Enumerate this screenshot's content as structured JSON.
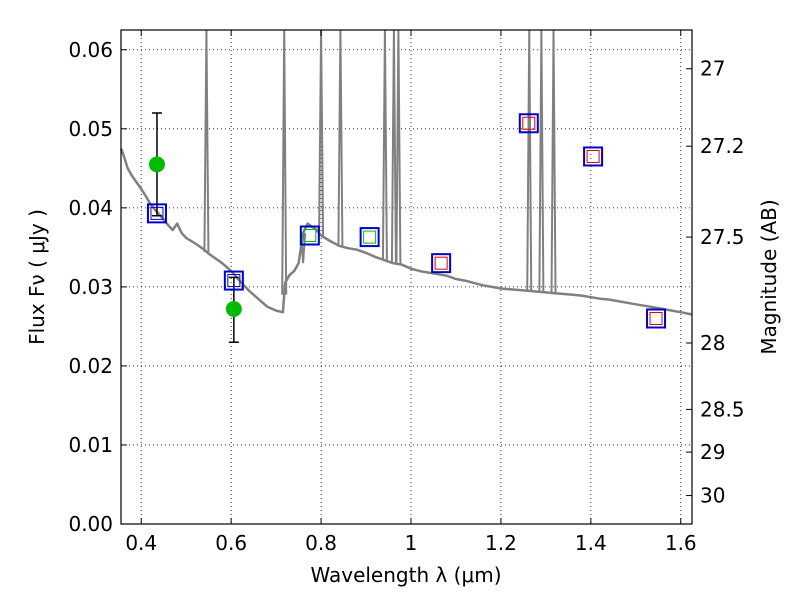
{
  "chart_data": {
    "type": "line",
    "xlabel": "Wavelength  λ (μm)",
    "ylabel_left": "Flux  Fν  ( μJy )",
    "ylabel_right": "Magnitude (AB)",
    "xlim": [
      0.355,
      1.625
    ],
    "ylim": [
      0.0,
      0.0625
    ],
    "grid": true,
    "x_ticks": [
      0.4,
      0.6,
      0.8,
      1.0,
      1.2,
      1.4,
      1.6
    ],
    "x_tick_labels": [
      "0.4",
      "0.6",
      "0.8",
      "1",
      "1.2",
      "1.4",
      "1.6"
    ],
    "y_ticks": [
      0.0,
      0.01,
      0.02,
      0.03,
      0.04,
      0.05,
      0.06
    ],
    "y_tick_labels": [
      "0.00",
      "0.01",
      "0.02",
      "0.03",
      "0.04",
      "0.05",
      "0.06"
    ],
    "right_ticks": [
      {
        "flux": 0.0576,
        "label": "27"
      },
      {
        "flux": 0.0478,
        "label": "27.2"
      },
      {
        "flux": 0.0363,
        "label": "27.5"
      },
      {
        "flux": 0.0229,
        "label": "28"
      },
      {
        "flux": 0.0145,
        "label": "28.5"
      },
      {
        "flux": 0.0091,
        "label": "29"
      },
      {
        "flux": 0.0036,
        "label": "30"
      }
    ],
    "sed_model": {
      "color": "#808080",
      "points": [
        [
          0.355,
          0.0475
        ],
        [
          0.36,
          0.0468
        ],
        [
          0.37,
          0.045
        ],
        [
          0.38,
          0.044
        ],
        [
          0.39,
          0.0432
        ],
        [
          0.4,
          0.0424
        ],
        [
          0.41,
          0.0415
        ],
        [
          0.42,
          0.0405
        ],
        [
          0.43,
          0.0398
        ],
        [
          0.44,
          0.0392
        ],
        [
          0.45,
          0.0385
        ],
        [
          0.46,
          0.0378
        ],
        [
          0.47,
          0.0372
        ],
        [
          0.48,
          0.038
        ],
        [
          0.49,
          0.0368
        ],
        [
          0.5,
          0.0362
        ],
        [
          0.52,
          0.0355
        ],
        [
          0.54,
          0.0347
        ],
        [
          0.55,
          0.0342
        ],
        [
          0.56,
          0.0338
        ],
        [
          0.58,
          0.033
        ],
        [
          0.6,
          0.032
        ],
        [
          0.62,
          0.0307
        ],
        [
          0.64,
          0.0295
        ],
        [
          0.66,
          0.0285
        ],
        [
          0.68,
          0.0275
        ],
        [
          0.7,
          0.027
        ],
        [
          0.715,
          0.0268
        ],
        [
          0.72,
          0.0305
        ],
        [
          0.73,
          0.0315
        ],
        [
          0.74,
          0.032
        ],
        [
          0.75,
          0.033
        ],
        [
          0.76,
          0.0368
        ],
        [
          0.77,
          0.038
        ],
        [
          0.78,
          0.0376
        ],
        [
          0.79,
          0.0372
        ],
        [
          0.8,
          0.0365
        ],
        [
          0.82,
          0.0358
        ],
        [
          0.84,
          0.0352
        ],
        [
          0.86,
          0.0349
        ],
        [
          0.88,
          0.0347
        ],
        [
          0.9,
          0.0343
        ],
        [
          0.92,
          0.0338
        ],
        [
          0.94,
          0.0334
        ],
        [
          0.96,
          0.033
        ],
        [
          0.98,
          0.0328
        ],
        [
          1.0,
          0.0323
        ],
        [
          1.02,
          0.032
        ],
        [
          1.04,
          0.0318
        ],
        [
          1.06,
          0.0316
        ],
        [
          1.08,
          0.0314
        ],
        [
          1.1,
          0.031
        ],
        [
          1.12,
          0.0308
        ],
        [
          1.14,
          0.0305
        ],
        [
          1.16,
          0.0302
        ],
        [
          1.18,
          0.03
        ],
        [
          1.2,
          0.0298
        ],
        [
          1.22,
          0.0297
        ],
        [
          1.24,
          0.0296
        ],
        [
          1.26,
          0.0295
        ],
        [
          1.28,
          0.0294
        ],
        [
          1.3,
          0.0293
        ],
        [
          1.32,
          0.0292
        ],
        [
          1.34,
          0.0291
        ],
        [
          1.36,
          0.029
        ],
        [
          1.38,
          0.0289
        ],
        [
          1.4,
          0.0287
        ],
        [
          1.42,
          0.0285
        ],
        [
          1.44,
          0.0284
        ],
        [
          1.46,
          0.0282
        ],
        [
          1.48,
          0.028
        ],
        [
          1.5,
          0.0278
        ],
        [
          1.52,
          0.0276
        ],
        [
          1.54,
          0.0274
        ],
        [
          1.56,
          0.0272
        ],
        [
          1.58,
          0.027
        ],
        [
          1.6,
          0.0268
        ],
        [
          1.625,
          0.0265
        ]
      ],
      "emission_lines": [
        {
          "x": 0.545,
          "top": 0.0625
        },
        {
          "x": 0.718,
          "top": 0.0625
        },
        {
          "x": 0.76,
          "top": 0.033
        },
        {
          "x": 0.8,
          "top": 0.0625
        },
        {
          "x": 0.843,
          "top": 0.0625
        },
        {
          "x": 0.942,
          "top": 0.0625
        },
        {
          "x": 0.962,
          "top": 0.0625
        },
        {
          "x": 0.972,
          "top": 0.0625
        },
        {
          "x": 1.263,
          "top": 0.0625
        },
        {
          "x": 1.29,
          "top": 0.0625
        },
        {
          "x": 1.317,
          "top": 0.0625
        }
      ]
    },
    "observed": {
      "color": "#00bb00",
      "points": [
        {
          "x": 0.435,
          "y": 0.0455,
          "yerr_low": 0.039,
          "yerr_high": 0.052
        },
        {
          "x": 0.606,
          "y": 0.0272,
          "yerr_low": 0.023,
          "yerr_high": 0.0312
        }
      ]
    },
    "model_photometry": {
      "outer_color": "#0000cc",
      "points": [
        {
          "x": 0.435,
          "y": 0.0393,
          "inner": "#0000cc"
        },
        {
          "x": 0.606,
          "y": 0.0308,
          "inner": "#0000cc"
        },
        {
          "x": 0.775,
          "y": 0.0365,
          "inner": "#00bb00"
        },
        {
          "x": 0.908,
          "y": 0.0363,
          "inner": "#00bb00"
        },
        {
          "x": 1.067,
          "y": 0.033,
          "inner": "#dd0000"
        },
        {
          "x": 1.262,
          "y": 0.0507,
          "inner": "#dd0000"
        },
        {
          "x": 1.405,
          "y": 0.0465,
          "inner": "#dd0000"
        },
        {
          "x": 1.545,
          "y": 0.026,
          "inner": "#dd0000"
        }
      ]
    }
  }
}
